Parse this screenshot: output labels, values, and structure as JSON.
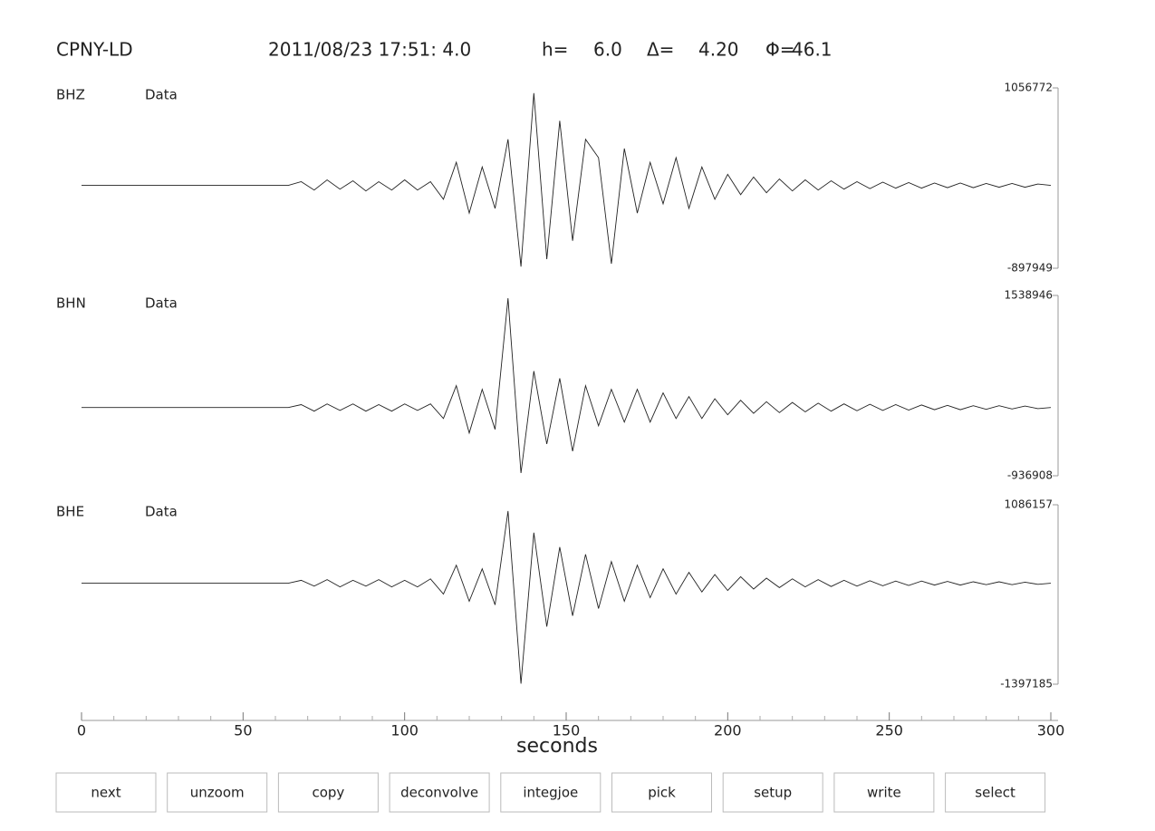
{
  "header": {
    "station": "CPNY-LD",
    "origin": "2011/08/23 17:51: 4.0",
    "depth_label": "h=",
    "depth": "6.0",
    "distance_label": "Δ=",
    "distance": "4.20",
    "azimuth_label": "Φ=",
    "azimuth": "46.1"
  },
  "chart_data": [
    {
      "type": "line",
      "title": "BHZ",
      "subtitle": "Data",
      "color": "#222222",
      "x": [
        0,
        64,
        68,
        72,
        76,
        80,
        84,
        88,
        92,
        96,
        100,
        104,
        108,
        112,
        116,
        120,
        124,
        128,
        132,
        136,
        140,
        144,
        148,
        152,
        156,
        160,
        164,
        168,
        172,
        176,
        180,
        184,
        188,
        192,
        196,
        200,
        204,
        208,
        212,
        216,
        220,
        224,
        228,
        232,
        236,
        240,
        244,
        248,
        252,
        256,
        260,
        264,
        268,
        272,
        276,
        280,
        284,
        288,
        292,
        296,
        300
      ],
      "values": [
        0,
        0,
        40000,
        -50000,
        60000,
        -40000,
        50000,
        -60000,
        40000,
        -50000,
        60000,
        -50000,
        40000,
        -150000,
        250000,
        -300000,
        200000,
        -250000,
        500000,
        -880000,
        1000000,
        -800000,
        700000,
        -600000,
        500000,
        300000,
        -850000,
        400000,
        -300000,
        250000,
        -200000,
        300000,
        -250000,
        200000,
        -150000,
        120000,
        -100000,
        90000,
        -80000,
        70000,
        -60000,
        60000,
        -50000,
        50000,
        -40000,
        40000,
        -35000,
        35000,
        -30000,
        30000,
        -30000,
        25000,
        -25000,
        25000,
        -25000,
        20000,
        -20000,
        20000,
        -20000,
        15000,
        0
      ],
      "ylim": [
        -897949,
        1056772
      ],
      "yticks": [
        -897949,
        1056772
      ]
    },
    {
      "type": "line",
      "title": "BHN",
      "subtitle": "Data",
      "color": "#222222",
      "x": [
        0,
        64,
        68,
        72,
        76,
        80,
        84,
        88,
        92,
        96,
        100,
        104,
        108,
        112,
        116,
        120,
        124,
        128,
        132,
        136,
        140,
        144,
        148,
        152,
        156,
        160,
        164,
        168,
        172,
        176,
        180,
        184,
        188,
        192,
        196,
        200,
        204,
        208,
        212,
        216,
        220,
        224,
        228,
        232,
        236,
        240,
        244,
        248,
        252,
        256,
        260,
        264,
        268,
        272,
        276,
        280,
        284,
        288,
        292,
        296,
        300
      ],
      "values": [
        0,
        0,
        40000,
        -50000,
        50000,
        -40000,
        50000,
        -50000,
        40000,
        -50000,
        50000,
        -40000,
        50000,
        -150000,
        300000,
        -350000,
        250000,
        -300000,
        1500000,
        -900000,
        500000,
        -500000,
        400000,
        -600000,
        300000,
        -250000,
        250000,
        -200000,
        250000,
        -200000,
        200000,
        -150000,
        150000,
        -150000,
        120000,
        -100000,
        100000,
        -80000,
        80000,
        -70000,
        70000,
        -60000,
        60000,
        -50000,
        50000,
        -45000,
        45000,
        -40000,
        40000,
        -35000,
        35000,
        -30000,
        30000,
        -30000,
        25000,
        -25000,
        25000,
        -20000,
        20000,
        -15000,
        0
      ],
      "ylim": [
        -936908,
        1538946
      ],
      "yticks": [
        -936908,
        1538946
      ]
    },
    {
      "type": "line",
      "title": "BHE",
      "subtitle": "Data",
      "color": "#222222",
      "x": [
        0,
        64,
        68,
        72,
        76,
        80,
        84,
        88,
        92,
        96,
        100,
        104,
        108,
        112,
        116,
        120,
        124,
        128,
        132,
        136,
        140,
        144,
        148,
        152,
        156,
        160,
        164,
        168,
        172,
        176,
        180,
        184,
        188,
        192,
        196,
        200,
        204,
        208,
        212,
        216,
        220,
        224,
        228,
        232,
        236,
        240,
        244,
        248,
        252,
        256,
        260,
        264,
        268,
        272,
        276,
        280,
        284,
        288,
        292,
        296,
        300
      ],
      "values": [
        0,
        0,
        40000,
        -40000,
        50000,
        -50000,
        40000,
        -40000,
        50000,
        -50000,
        40000,
        -50000,
        60000,
        -150000,
        250000,
        -250000,
        200000,
        -300000,
        1000000,
        -1390000,
        700000,
        -600000,
        500000,
        -450000,
        400000,
        -350000,
        300000,
        -250000,
        250000,
        -200000,
        200000,
        -150000,
        150000,
        -120000,
        120000,
        -100000,
        90000,
        -80000,
        70000,
        -60000,
        60000,
        -50000,
        50000,
        -45000,
        40000,
        -40000,
        35000,
        -35000,
        30000,
        -30000,
        30000,
        -25000,
        25000,
        -25000,
        20000,
        -20000,
        20000,
        -20000,
        15000,
        -15000,
        0
      ],
      "ylim": [
        -1397185,
        1086157
      ],
      "yticks": [
        -1397185,
        1086157
      ]
    }
  ],
  "x_axis": {
    "label": "seconds",
    "xlim": [
      0,
      300
    ],
    "xticks": [
      0,
      50,
      100,
      150,
      200,
      250,
      300
    ],
    "xminorticks": [
      10,
      20,
      30,
      40,
      60,
      70,
      80,
      90,
      110,
      120,
      130,
      140,
      160,
      170,
      180,
      190,
      210,
      220,
      230,
      240,
      260,
      270,
      280,
      290
    ]
  },
  "buttons": [
    "next",
    "unzoom",
    "copy",
    "deconvolve",
    "integjoe",
    "pick",
    "setup",
    "write",
    "select"
  ]
}
